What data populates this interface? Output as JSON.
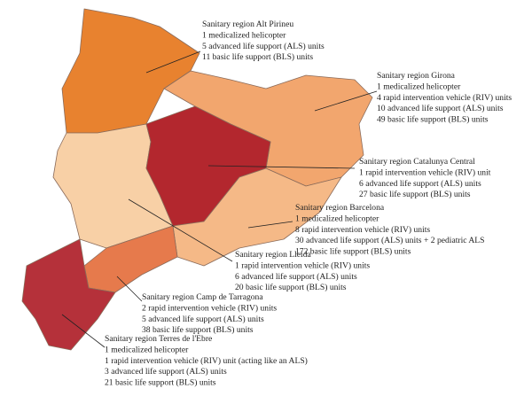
{
  "regions": [
    {
      "lines": [
        "Sanitary region Alt Pirineu",
        "1 medicalized helicopter",
        "5 advanced life support (ALS) units",
        "11 basic life support (BLS) units"
      ]
    },
    {
      "lines": [
        "Sanitary region Girona",
        "1 medicalized helicopter",
        "4 rapid intervention vehicle (RIV) units",
        "10 advanced life support (ALS) units",
        "49 basic life support (BLS) units"
      ]
    },
    {
      "lines": [
        "Sanitary region Catalunya Central",
        "1 rapid intervention vehicle (RIV) unit",
        "6 advanced life support (ALS) units",
        "27 basic life support (BLS) units"
      ]
    },
    {
      "lines": [
        "Sanitary region Barcelona",
        "1 medicalized helicopter",
        "8 rapid intervention vehicle (RIV) units",
        "30 advanced life support (ALS) units + 2 pediatric ALS",
        "172 basic life support (BLS) units"
      ]
    },
    {
      "lines": [
        "Sanitary region Lleida",
        "1 rapid intervention vehicle (RIV) units",
        "6 advanced life support (ALS) units",
        "20 basic life support (BLS) units"
      ]
    },
    {
      "lines": [
        "Sanitary region Camp de Tarragona",
        "2 rapid intervention vehicle (RIV) units",
        "5 advanced life support (ALS) units",
        "38 basic life support (BLS) units"
      ]
    },
    {
      "lines": [
        "Sanitary region Terres de l'Ebre",
        "1 medicalized helicopter",
        "1 rapid intervention vehicle (RIV) unit (acting like an ALS)",
        "3 advanced life support (ALS) units",
        "21 basic life support (BLS) units"
      ]
    }
  ]
}
